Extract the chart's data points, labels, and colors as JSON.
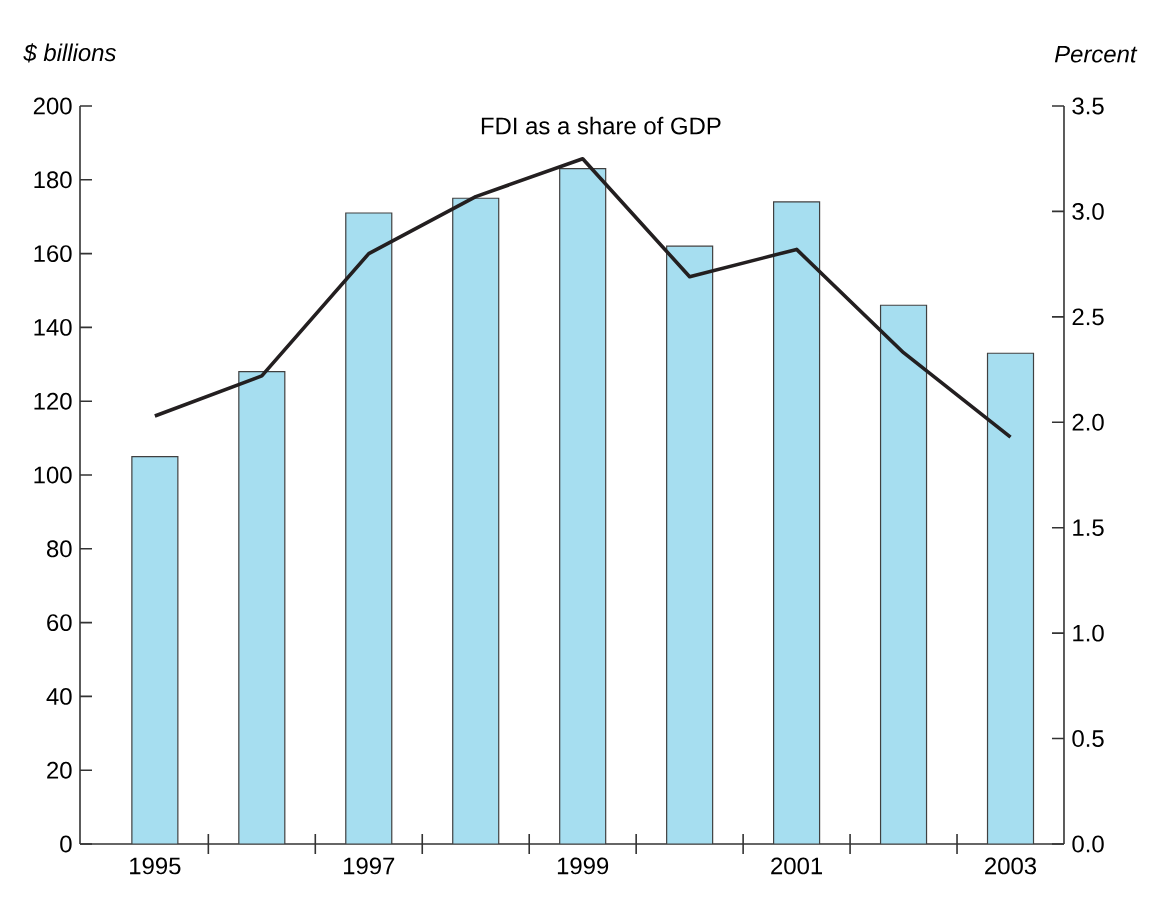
{
  "chart_data": {
    "type": "bar",
    "categories": [
      "1995",
      null,
      "1997",
      null,
      "1999",
      null,
      "2001",
      null,
      "2003"
    ],
    "series": [
      {
        "color": "#a6def0",
        "values": [
          105,
          128,
          171,
          175,
          183,
          162,
          174,
          146,
          133
        ]
      },
      {
        "type": "line",
        "axis": "y2",
        "name": "FDI as a share of GDP",
        "color": "#231f20",
        "values": [
          2.03,
          2.22,
          2.8,
          3.07,
          3.25,
          2.69,
          2.82,
          2.33,
          1.93
        ]
      }
    ],
    "ylabel": "$ billions",
    "y2label": "Percent",
    "ylim": [
      0,
      200
    ],
    "yticks": [
      0,
      20,
      40,
      60,
      80,
      100,
      120,
      140,
      160,
      180,
      200
    ],
    "y2lim": [
      0,
      3.5
    ],
    "y2ticks": [
      {
        "value": 0,
        "label": "0.0"
      },
      {
        "value": 0.5,
        "label": "0.5"
      },
      {
        "value": 1,
        "label": "1.0"
      },
      {
        "value": 1.5,
        "label": "1.5"
      },
      {
        "value": 2,
        "label": "2.0"
      },
      {
        "value": 2.5,
        "label": "2.5"
      },
      {
        "value": 3,
        "label": "3.0"
      },
      {
        "value": 3.5,
        "label": "3.5"
      }
    ],
    "grid": false,
    "legend": false,
    "marker": "none",
    "line_style": "solid"
  }
}
